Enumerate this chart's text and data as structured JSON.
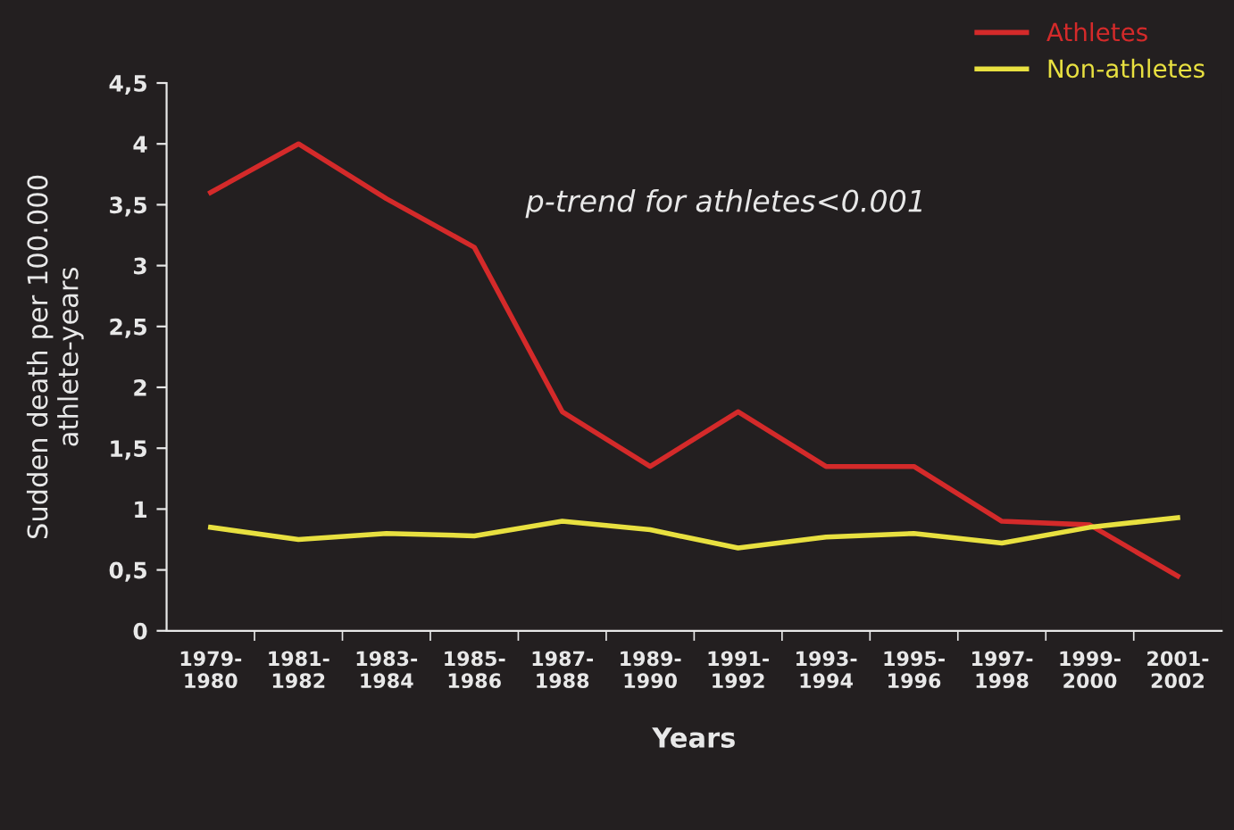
{
  "chart_data": {
    "type": "line",
    "categories": [
      "1979-\n1980",
      "1981-\n1982",
      "1983-\n1984",
      "1985-\n1986",
      "1987-\n1988",
      "1989-\n1990",
      "1991-\n1992",
      "1993-\n1994",
      "1995-\n1996",
      "1997-\n1998",
      "1999-\n2000",
      "2001-\n2002"
    ],
    "series": [
      {
        "name": "Athletes",
        "color": "#d42a2a",
        "values": [
          3.6,
          4.0,
          3.55,
          3.15,
          1.8,
          1.35,
          1.8,
          1.35,
          1.35,
          0.9,
          0.87,
          0.45
        ]
      },
      {
        "name": "Non-athletes",
        "color": "#e8e040",
        "values": [
          0.85,
          0.75,
          0.8,
          0.78,
          0.9,
          0.83,
          0.68,
          0.77,
          0.8,
          0.72,
          0.85,
          0.93
        ]
      }
    ],
    "ylim": [
      0,
      4.5
    ],
    "yticks": [
      0,
      {
        "value": 0.5,
        "label": "0,5"
      },
      1,
      {
        "value": 1.5,
        "label": "1,5"
      },
      2,
      {
        "value": 2.5,
        "label": "2,5"
      },
      3,
      {
        "value": 3.5,
        "label": "3,5"
      },
      4,
      {
        "value": 4.5,
        "label": "4,5"
      }
    ],
    "xlabel": "Years",
    "ylabel": "Sudden death per 100.000\nathlete-years",
    "annotations": [
      "p-trend for athletes<0.001"
    ],
    "legend": "top right",
    "grid": false,
    "marker": "none",
    "line_style": "solid"
  }
}
